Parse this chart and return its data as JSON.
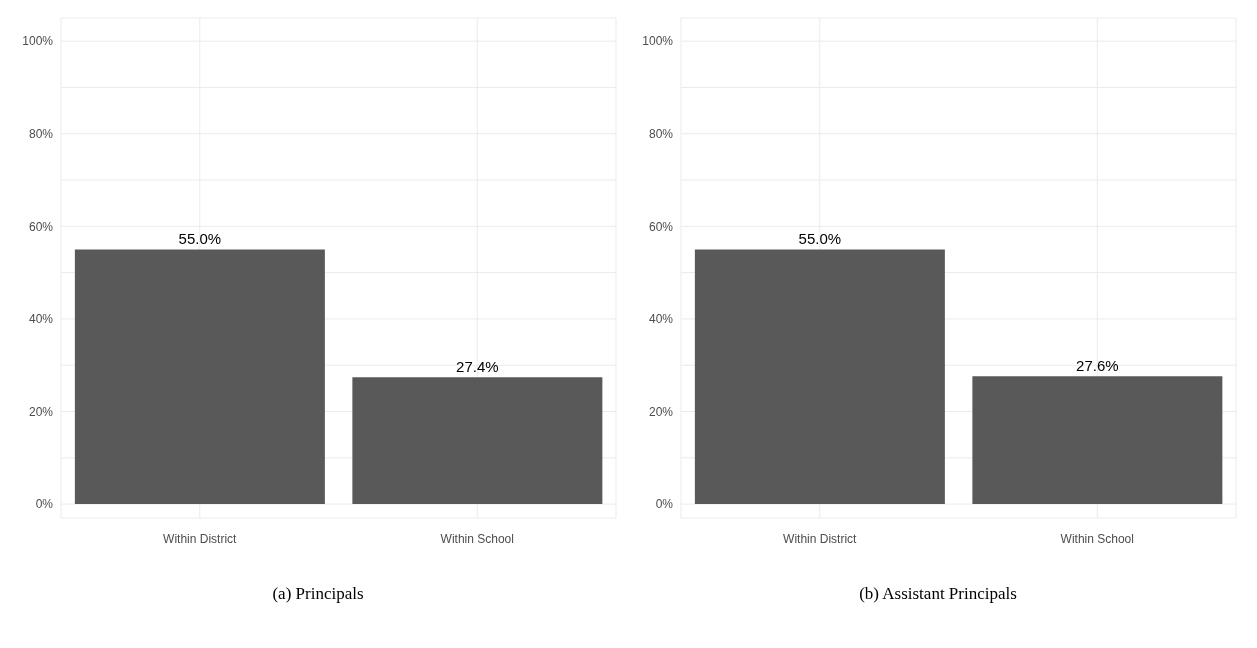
{
  "chart_data": [
    {
      "type": "bar",
      "title": "(a) Principals",
      "categories": [
        "Within District",
        "Within School"
      ],
      "values": [
        55.0,
        27.4
      ],
      "value_labels": [
        "55.0%",
        "27.4%"
      ],
      "color": "#595959",
      "ylim": [
        -3,
        105
      ],
      "yticks": [
        {
          "value": 0,
          "label": "0%"
        },
        {
          "value": 10,
          "label": null
        },
        {
          "value": 20,
          "label": "20%"
        },
        {
          "value": 30,
          "label": null
        },
        {
          "value": 40,
          "label": "40%"
        },
        {
          "value": 50,
          "label": null
        },
        {
          "value": 60,
          "label": "60%"
        },
        {
          "value": 70,
          "label": null
        },
        {
          "value": 80,
          "label": "80%"
        },
        {
          "value": 90,
          "label": null
        },
        {
          "value": 100,
          "label": "100%"
        }
      ],
      "grid": true
    },
    {
      "type": "bar",
      "title": "(b) Assistant Principals",
      "categories": [
        "Within District",
        "Within School"
      ],
      "values": [
        55.0,
        27.6
      ],
      "value_labels": [
        "55.0%",
        "27.6%"
      ],
      "color": "#595959",
      "ylim": [
        -3,
        105
      ],
      "yticks": [
        {
          "value": 0,
          "label": "0%"
        },
        {
          "value": 10,
          "label": null
        },
        {
          "value": 20,
          "label": "20%"
        },
        {
          "value": 30,
          "label": null
        },
        {
          "value": 40,
          "label": "40%"
        },
        {
          "value": 50,
          "label": null
        },
        {
          "value": 60,
          "label": "60%"
        },
        {
          "value": 70,
          "label": null
        },
        {
          "value": 80,
          "label": "80%"
        },
        {
          "value": 90,
          "label": null
        },
        {
          "value": 100,
          "label": "100%"
        }
      ],
      "grid": true
    }
  ]
}
